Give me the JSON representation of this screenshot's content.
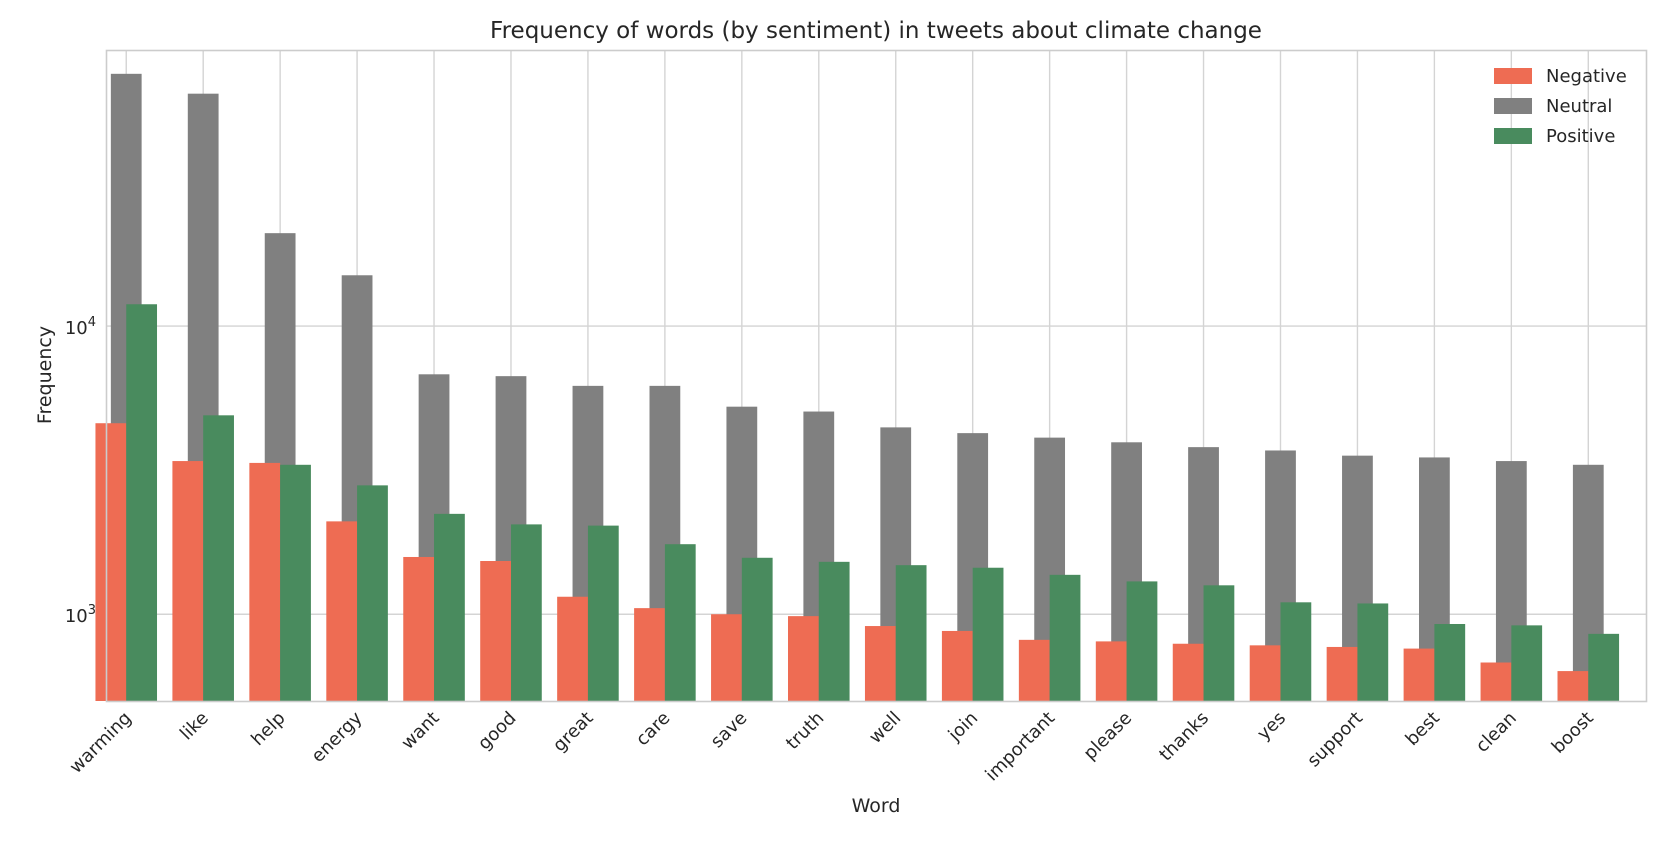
{
  "chart_data": {
    "type": "bar",
    "title": "Frequency of words (by sentiment) in tweets about climate change",
    "xlabel": "Word",
    "ylabel": "Frequency",
    "yscale": "log",
    "ylim": [
      500,
      90000
    ],
    "yticks": [
      {
        "value": 1000,
        "base": "10",
        "exp": "3"
      },
      {
        "value": 10000,
        "base": "10",
        "exp": "4"
      }
    ],
    "grid": true,
    "legend_position": "top-right",
    "categories": [
      "warming",
      "like",
      "help",
      "energy",
      "want",
      "good",
      "great",
      "care",
      "save",
      "truth",
      "well",
      "join",
      "important",
      "please",
      "thanks",
      "yes",
      "support",
      "best",
      "clean",
      "boost"
    ],
    "series": [
      {
        "name": "Negative",
        "color": "#ee6c53",
        "values": [
          4600,
          3400,
          3350,
          2100,
          1580,
          1530,
          1150,
          1050,
          1000,
          985,
          910,
          875,
          815,
          805,
          790,
          780,
          770,
          760,
          680,
          635
        ]
      },
      {
        "name": "Neutral",
        "color": "#808080",
        "values": [
          75000,
          64000,
          21000,
          15000,
          6800,
          6700,
          6200,
          6200,
          5250,
          5050,
          4450,
          4250,
          4100,
          3950,
          3800,
          3700,
          3550,
          3500,
          3400,
          3300
        ]
      },
      {
        "name": "Positive",
        "color": "#498b5e",
        "values": [
          11900,
          4900,
          3300,
          2800,
          2230,
          2050,
          2030,
          1750,
          1570,
          1520,
          1480,
          1450,
          1370,
          1300,
          1260,
          1100,
          1090,
          925,
          915,
          855
        ]
      }
    ]
  }
}
